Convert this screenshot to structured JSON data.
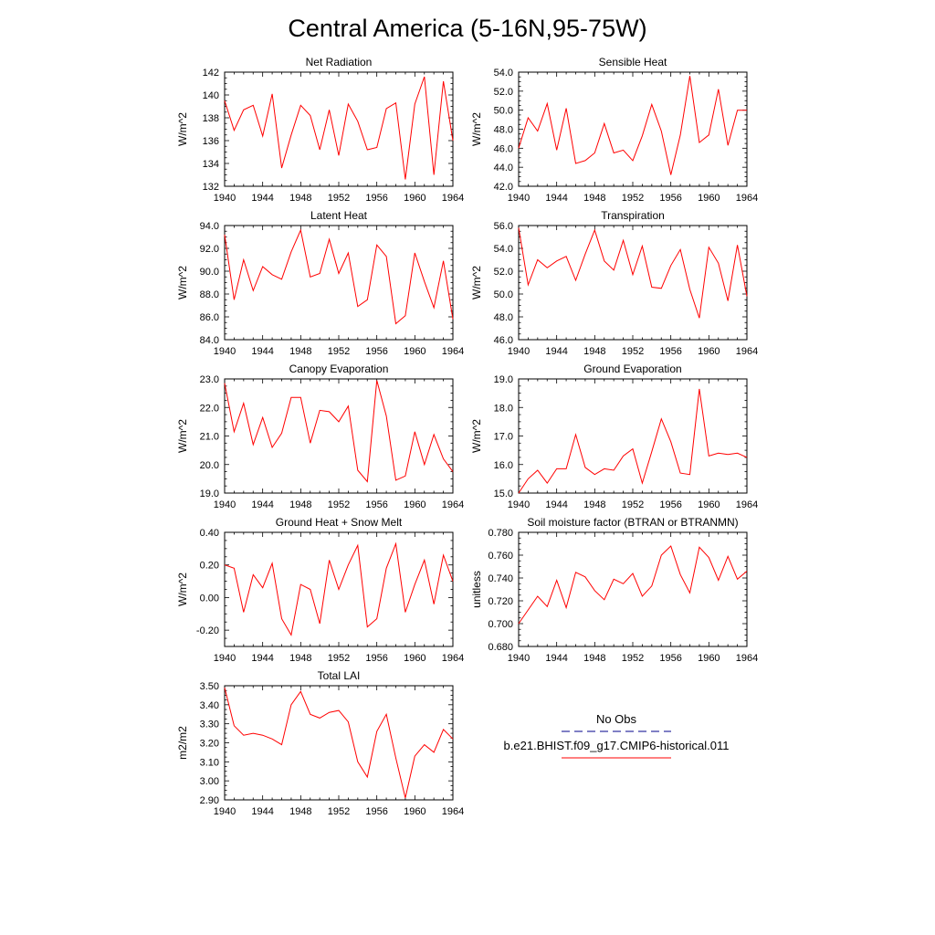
{
  "figure": {
    "title": "Central America (5-16N,95-75W)"
  },
  "legend": {
    "entries": [
      {
        "label": "No Obs",
        "color": "#00008B",
        "dash": true
      },
      {
        "label": "b.e21.BHIST.f09_g17.CMIP6-historical.011",
        "color": "#FF0000",
        "dash": false
      }
    ]
  },
  "chart_data": [
    {
      "type": "line",
      "title": "Net Radiation",
      "ylabel": "W/m^2",
      "xlim": [
        1940,
        1964
      ],
      "ylim": [
        132,
        142
      ],
      "xticks": [
        "1940",
        "1944",
        "1948",
        "1952",
        "1956",
        "1960",
        "1964"
      ],
      "yticks": [
        "132",
        "134",
        "136",
        "138",
        "140",
        "142"
      ],
      "x": [
        1940,
        1941,
        1942,
        1943,
        1944,
        1945,
        1946,
        1947,
        1948,
        1949,
        1950,
        1951,
        1952,
        1953,
        1954,
        1955,
        1956,
        1957,
        1958,
        1959,
        1960,
        1961,
        1962,
        1963,
        1964
      ],
      "series": [
        {
          "color": "#FF0000",
          "values": [
            139.5,
            136.9,
            138.7,
            139.1,
            136.4,
            140.1,
            133.6,
            136.5,
            139.1,
            138.2,
            135.2,
            138.7,
            134.7,
            139.2,
            137.7,
            135.2,
            135.4,
            138.8,
            139.3,
            132.6,
            139.2,
            141.6,
            133.0,
            141.2,
            136.0
          ]
        }
      ]
    },
    {
      "type": "line",
      "title": "Sensible Heat",
      "ylabel": "W/m^2",
      "xlim": [
        1940,
        1964
      ],
      "ylim": [
        42.0,
        54.0
      ],
      "xticks": [
        "1940",
        "1944",
        "1948",
        "1952",
        "1956",
        "1960",
        "1964"
      ],
      "yticks": [
        "42.0",
        "44.0",
        "46.0",
        "48.0",
        "50.0",
        "52.0",
        "54.0"
      ],
      "x": [
        1940,
        1941,
        1942,
        1943,
        1944,
        1945,
        1946,
        1947,
        1948,
        1949,
        1950,
        1951,
        1952,
        1953,
        1954,
        1955,
        1956,
        1957,
        1958,
        1959,
        1960,
        1961,
        1962,
        1963,
        1964
      ],
      "series": [
        {
          "color": "#FF0000",
          "values": [
            46.0,
            49.2,
            47.8,
            50.7,
            45.8,
            50.2,
            44.4,
            44.7,
            45.5,
            48.6,
            45.5,
            45.8,
            44.7,
            47.3,
            50.6,
            47.8,
            43.2,
            47.4,
            53.6,
            46.6,
            47.4,
            52.2,
            46.3,
            50.0,
            50.0
          ]
        }
      ]
    },
    {
      "type": "line",
      "title": "Latent Heat",
      "ylabel": "W/m^2",
      "xlim": [
        1940,
        1964
      ],
      "ylim": [
        84.0,
        94.0
      ],
      "xticks": [
        "1940",
        "1944",
        "1948",
        "1952",
        "1956",
        "1960",
        "1964"
      ],
      "yticks": [
        "84.0",
        "86.0",
        "88.0",
        "90.0",
        "92.0",
        "94.0"
      ],
      "x": [
        1940,
        1941,
        1942,
        1943,
        1944,
        1945,
        1946,
        1947,
        1948,
        1949,
        1950,
        1951,
        1952,
        1953,
        1954,
        1955,
        1956,
        1957,
        1958,
        1959,
        1960,
        1961,
        1962,
        1963,
        1964
      ],
      "series": [
        {
          "color": "#FF0000",
          "values": [
            93.2,
            87.5,
            91.0,
            88.3,
            90.4,
            89.7,
            89.3,
            91.7,
            93.6,
            89.5,
            89.8,
            92.8,
            89.8,
            91.6,
            86.9,
            87.5,
            92.3,
            91.3,
            85.4,
            86.1,
            91.6,
            89.1,
            86.8,
            90.9,
            85.8
          ]
        }
      ]
    },
    {
      "type": "line",
      "title": "Transpiration",
      "ylabel": "W/m^2",
      "xlim": [
        1940,
        1964
      ],
      "ylim": [
        46.0,
        56.0
      ],
      "xticks": [
        "1940",
        "1944",
        "1948",
        "1952",
        "1956",
        "1960",
        "1964"
      ],
      "yticks": [
        "46.0",
        "48.0",
        "50.0",
        "52.0",
        "54.0",
        "56.0"
      ],
      "x": [
        1940,
        1941,
        1942,
        1943,
        1944,
        1945,
        1946,
        1947,
        1948,
        1949,
        1950,
        1951,
        1952,
        1953,
        1954,
        1955,
        1956,
        1957,
        1958,
        1959,
        1960,
        1961,
        1962,
        1963,
        1964
      ],
      "series": [
        {
          "color": "#FF0000",
          "values": [
            55.8,
            50.8,
            53.0,
            52.3,
            52.9,
            53.3,
            51.2,
            53.5,
            55.6,
            52.9,
            52.1,
            54.7,
            51.7,
            54.2,
            50.6,
            50.5,
            52.5,
            53.9,
            50.4,
            47.9,
            54.1,
            52.7,
            49.4,
            54.3,
            49.8
          ]
        }
      ]
    },
    {
      "type": "line",
      "title": "Canopy Evaporation",
      "ylabel": "W/m^2",
      "xlim": [
        1940,
        1964
      ],
      "ylim": [
        19.0,
        23.0
      ],
      "xticks": [
        "1940",
        "1944",
        "1948",
        "1952",
        "1956",
        "1960",
        "1964"
      ],
      "yticks": [
        "19.0",
        "20.0",
        "21.0",
        "22.0",
        "23.0"
      ],
      "x": [
        1940,
        1941,
        1942,
        1943,
        1944,
        1945,
        1946,
        1947,
        1948,
        1949,
        1950,
        1951,
        1952,
        1953,
        1954,
        1955,
        1956,
        1957,
        1958,
        1959,
        1960,
        1961,
        1962,
        1963,
        1964
      ],
      "series": [
        {
          "color": "#FF0000",
          "values": [
            22.85,
            21.15,
            22.15,
            20.7,
            21.65,
            20.6,
            21.1,
            22.35,
            22.35,
            20.75,
            21.9,
            21.85,
            21.5,
            22.05,
            19.8,
            19.4,
            22.95,
            21.7,
            19.45,
            19.6,
            21.15,
            20.0,
            21.05,
            20.2,
            19.75
          ]
        }
      ]
    },
    {
      "type": "line",
      "title": "Ground Evaporation",
      "ylabel": "W/m^2",
      "xlim": [
        1940,
        1964
      ],
      "ylim": [
        15.0,
        19.0
      ],
      "xticks": [
        "1940",
        "1944",
        "1948",
        "1952",
        "1956",
        "1960",
        "1964"
      ],
      "yticks": [
        "15.0",
        "16.0",
        "17.0",
        "18.0",
        "19.0"
      ],
      "x": [
        1940,
        1941,
        1942,
        1943,
        1944,
        1945,
        1946,
        1947,
        1948,
        1949,
        1950,
        1951,
        1952,
        1953,
        1954,
        1955,
        1956,
        1957,
        1958,
        1959,
        1960,
        1961,
        1962,
        1963,
        1964
      ],
      "series": [
        {
          "color": "#FF0000",
          "values": [
            15.0,
            15.5,
            15.8,
            15.35,
            15.85,
            15.85,
            17.05,
            15.9,
            15.65,
            15.85,
            15.8,
            16.3,
            16.55,
            15.35,
            16.45,
            17.6,
            16.8,
            15.7,
            15.65,
            18.65,
            16.3,
            16.4,
            16.35,
            16.4,
            16.25
          ]
        }
      ]
    },
    {
      "type": "line",
      "title": "Ground Heat + Snow Melt",
      "ylabel": "W/m^2",
      "xlim": [
        1940,
        1964
      ],
      "ylim": [
        -0.3,
        0.4
      ],
      "xticks": [
        "1940",
        "1944",
        "1948",
        "1952",
        "1956",
        "1960",
        "1964"
      ],
      "yticks": [
        "-0.20",
        "0.00",
        "0.20",
        "0.40"
      ],
      "ytick_values": [
        -0.2,
        0.0,
        0.2,
        0.4
      ],
      "x": [
        1940,
        1941,
        1942,
        1943,
        1944,
        1945,
        1946,
        1947,
        1948,
        1949,
        1950,
        1951,
        1952,
        1953,
        1954,
        1955,
        1956,
        1957,
        1958,
        1959,
        1960,
        1961,
        1962,
        1963,
        1964
      ],
      "series": [
        {
          "color": "#FF0000",
          "values": [
            0.2,
            0.18,
            -0.09,
            0.14,
            0.06,
            0.21,
            -0.13,
            -0.23,
            0.08,
            0.05,
            -0.16,
            0.23,
            0.05,
            0.2,
            0.32,
            -0.18,
            -0.13,
            0.18,
            0.33,
            -0.09,
            0.08,
            0.23,
            -0.04,
            0.26,
            0.1
          ]
        }
      ]
    },
    {
      "type": "line",
      "title": "Soil moisture factor (BTRAN or BTRANMN)",
      "ylabel": "unitless",
      "xlim": [
        1940,
        1964
      ],
      "ylim": [
        0.68,
        0.78
      ],
      "xticks": [
        "1940",
        "1944",
        "1948",
        "1952",
        "1956",
        "1960",
        "1964"
      ],
      "yticks": [
        "0.680",
        "0.700",
        "0.720",
        "0.740",
        "0.760",
        "0.780"
      ],
      "x": [
        1940,
        1941,
        1942,
        1943,
        1944,
        1945,
        1946,
        1947,
        1948,
        1949,
        1950,
        1951,
        1952,
        1953,
        1954,
        1955,
        1956,
        1957,
        1958,
        1959,
        1960,
        1961,
        1962,
        1963,
        1964
      ],
      "series": [
        {
          "color": "#FF0000",
          "values": [
            0.7,
            0.712,
            0.724,
            0.715,
            0.738,
            0.714,
            0.745,
            0.741,
            0.729,
            0.721,
            0.739,
            0.735,
            0.744,
            0.724,
            0.733,
            0.76,
            0.768,
            0.743,
            0.727,
            0.767,
            0.758,
            0.738,
            0.759,
            0.739,
            0.746
          ]
        }
      ]
    },
    {
      "type": "line",
      "title": "Total LAI",
      "ylabel": "m2/m2",
      "xlim": [
        1940,
        1964
      ],
      "ylim": [
        2.9,
        3.5
      ],
      "xticks": [
        "1940",
        "1944",
        "1948",
        "1952",
        "1956",
        "1960",
        "1964"
      ],
      "yticks": [
        "2.90",
        "3.00",
        "3.10",
        "3.20",
        "3.30",
        "3.40",
        "3.50"
      ],
      "x": [
        1940,
        1941,
        1942,
        1943,
        1944,
        1945,
        1946,
        1947,
        1948,
        1949,
        1950,
        1951,
        1952,
        1953,
        1954,
        1955,
        1956,
        1957,
        1958,
        1959,
        1960,
        1961,
        1962,
        1963,
        1964
      ],
      "series": [
        {
          "color": "#FF0000",
          "values": [
            3.49,
            3.29,
            3.24,
            3.25,
            3.24,
            3.22,
            3.19,
            3.4,
            3.47,
            3.35,
            3.33,
            3.36,
            3.37,
            3.31,
            3.1,
            3.02,
            3.26,
            3.35,
            3.12,
            2.91,
            3.13,
            3.19,
            3.15,
            3.27,
            3.22
          ]
        }
      ]
    }
  ]
}
